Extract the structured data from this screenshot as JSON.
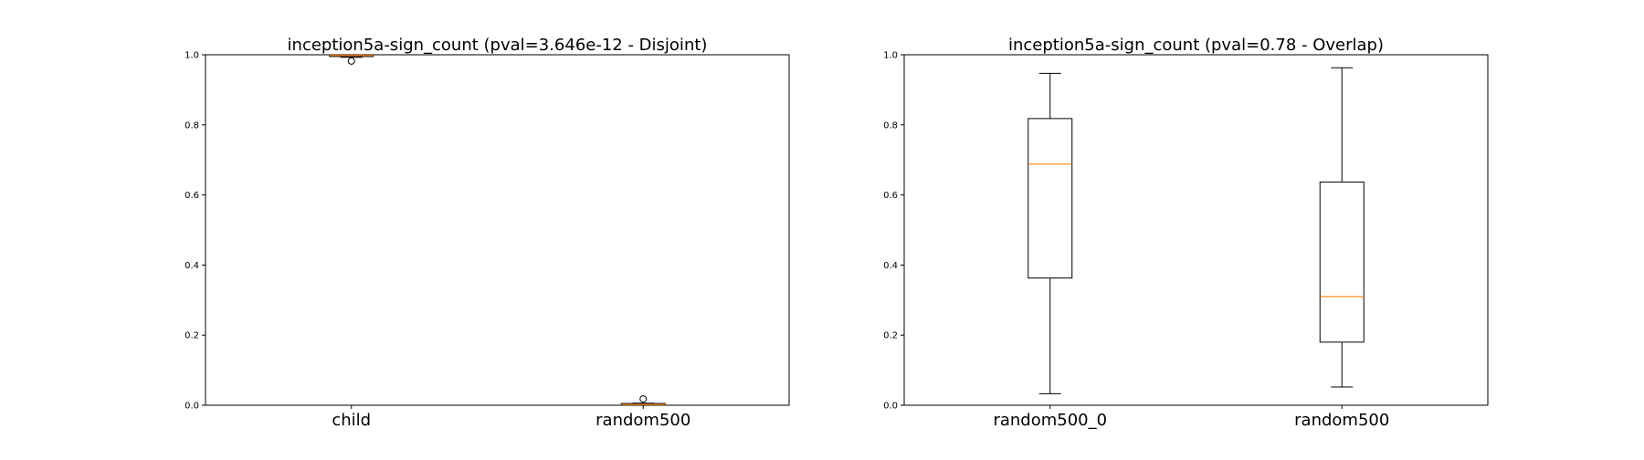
{
  "chart_data": [
    {
      "type": "box",
      "title": "inception5a-sign_count (pval=3.646e-12 - Disjoint)",
      "xlabel": "",
      "ylabel": "",
      "ylim": [
        0,
        1
      ],
      "yticks": [
        "0.0",
        "0.2",
        "0.4",
        "0.6",
        "0.8",
        "1.0"
      ],
      "categories": [
        "child",
        "random500"
      ],
      "boxes": [
        {
          "label": "child",
          "whisker_low": 0.993,
          "q1": 0.995,
          "median": 0.998,
          "q3": 1.0,
          "whisker_high": 1.0,
          "outliers": [
            0.982
          ]
        },
        {
          "label": "random500",
          "whisker_low": 0.0,
          "q1": 0.0,
          "median": 0.002,
          "q3": 0.005,
          "whisker_high": 0.006,
          "outliers": [
            0.018
          ]
        }
      ],
      "grid": false,
      "colors": {
        "box": "#000000",
        "median": "#ff7f0e"
      }
    },
    {
      "type": "box",
      "title": "inception5a-sign_count (pval=0.78 - Overlap)",
      "xlabel": "",
      "ylabel": "",
      "ylim": [
        0,
        1
      ],
      "yticks": [
        "0.0",
        "0.2",
        "0.4",
        "0.6",
        "0.8",
        "1.0"
      ],
      "categories": [
        "random500_0",
        "random500"
      ],
      "boxes": [
        {
          "label": "random500_0",
          "whisker_low": 0.033,
          "q1": 0.363,
          "median": 0.688,
          "q3": 0.818,
          "whisker_high": 0.947,
          "outliers": []
        },
        {
          "label": "random500",
          "whisker_low": 0.052,
          "q1": 0.18,
          "median": 0.31,
          "q3": 0.637,
          "whisker_high": 0.963,
          "outliers": []
        }
      ],
      "grid": false,
      "colors": {
        "box": "#000000",
        "median": "#ff7f0e"
      }
    }
  ]
}
